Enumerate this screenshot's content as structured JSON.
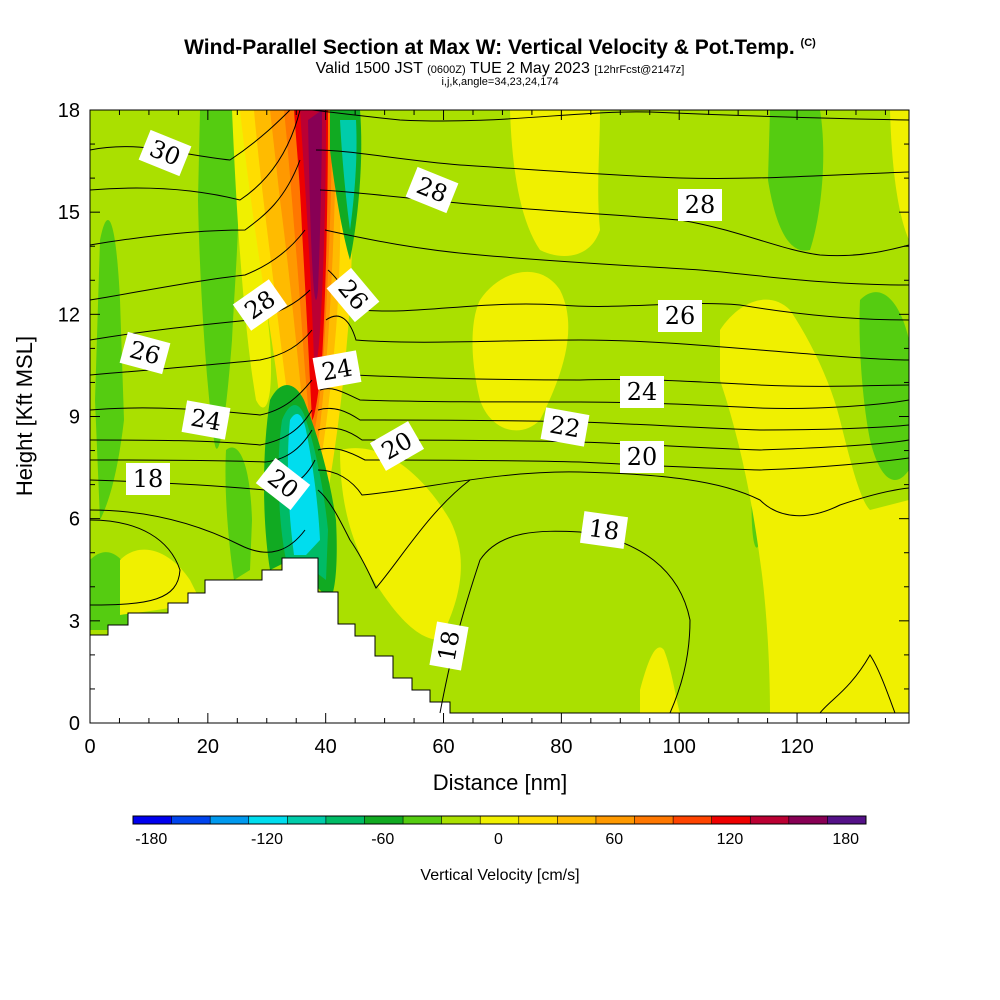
{
  "header": {
    "title": "Wind-Parallel Section at Max W: Vertical Velocity & Pot.Temp.",
    "title_suffix": "(C)",
    "valid_prefix": "Valid 1500 JST",
    "valid_utc": "(0600Z)",
    "valid_date": "TUE 2 May 2023",
    "forecast": "[12hrFcst@2147z]",
    "indices": "i,j,k,angle=34,23,24,174"
  },
  "chart_data": {
    "type": "heatmap",
    "xlabel": "Distance [nm]",
    "ylabel": "Height [Kft MSL]",
    "xlim": [
      0,
      139
    ],
    "ylim": [
      0,
      18
    ],
    "x_ticks": [
      "0",
      "20",
      "40",
      "60",
      "80",
      "100",
      "120"
    ],
    "y_ticks": [
      "0",
      "3",
      "6",
      "9",
      "12",
      "15",
      "18"
    ],
    "colorbar": {
      "label": "Vertical Velocity [cm/s]",
      "tick_labels": [
        "-180",
        "-120",
        "-60",
        "0",
        "60",
        "120",
        "180"
      ],
      "colors": [
        "#0000ee",
        "#0044ee",
        "#0099ee",
        "#00ddee",
        "#00ccaa",
        "#00bb66",
        "#11aa22",
        "#55cc11",
        "#aae000",
        "#f0f000",
        "#ffdd00",
        "#ffbb00",
        "#ff9900",
        "#ff7700",
        "#ff4400",
        "#ee0000",
        "#bb0033",
        "#880055",
        "#551188"
      ]
    },
    "contour_labels": [
      "30",
      "28",
      "28",
      "28",
      "26",
      "26",
      "26",
      "24",
      "24",
      "24",
      "22",
      "20",
      "20",
      "20",
      "18",
      "18",
      "18"
    ]
  }
}
